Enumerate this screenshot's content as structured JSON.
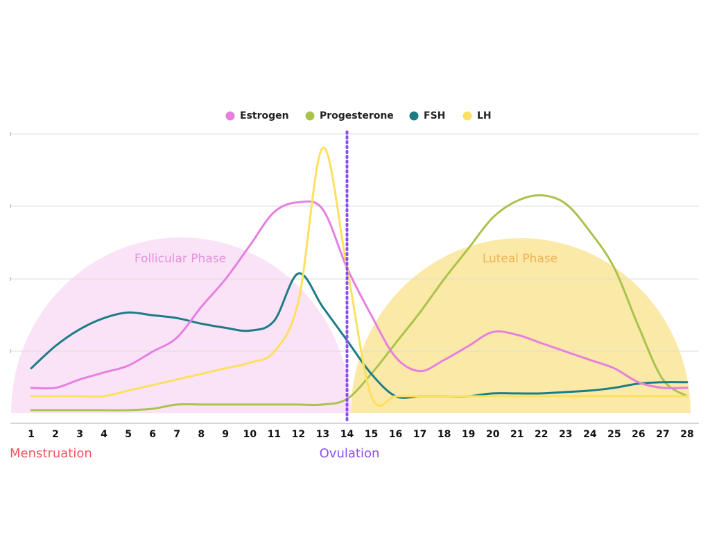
{
  "chart_data": {
    "type": "line",
    "title": "",
    "xlabel": "",
    "ylabel": "",
    "x": [
      1,
      2,
      3,
      4,
      5,
      6,
      7,
      8,
      9,
      10,
      11,
      12,
      13,
      14,
      15,
      16,
      17,
      18,
      19,
      20,
      21,
      22,
      23,
      24,
      25,
      26,
      27,
      28
    ],
    "xlim": [
      1,
      28
    ],
    "ylim": [
      0,
      100
    ],
    "grid": true,
    "legend_position": "top-center",
    "series": [
      {
        "name": "Estrogen",
        "color": "#e580e0",
        "values": [
          9,
          9,
          12,
          14.5,
          17,
          22,
          27,
          38,
          48,
          60,
          72,
          75.5,
          73,
          52,
          35,
          20,
          15,
          19,
          24,
          29,
          28,
          25,
          22,
          19,
          16,
          11,
          9,
          9
        ]
      },
      {
        "name": "Progesterone",
        "color": "#a9c34b",
        "values": [
          1,
          1,
          1,
          1,
          1,
          1.5,
          3,
          3,
          3,
          3,
          3,
          3,
          3,
          5,
          14,
          25,
          36,
          48,
          59,
          70,
          76,
          78,
          75,
          65,
          52,
          31,
          12,
          6
        ]
      },
      {
        "name": "FSH",
        "color": "#1b7c86",
        "values": [
          16,
          24,
          30,
          34,
          36,
          35,
          34,
          32,
          30.5,
          29.5,
          33,
          50,
          38,
          26,
          14,
          6,
          6,
          6,
          6,
          7,
          7,
          7,
          7.5,
          8,
          9,
          10.5,
          11,
          11
        ]
      },
      {
        "name": "LH",
        "color": "#fde05e",
        "values": [
          6,
          6,
          6,
          6,
          8,
          10,
          12,
          14,
          16,
          18,
          22,
          40,
          95,
          52,
          6,
          6,
          6,
          6,
          6,
          6,
          6,
          6,
          6,
          6,
          6,
          6,
          6,
          6
        ]
      }
    ],
    "ovulation_day": 14,
    "annotations": {
      "follicular_phase": "Follicular Phase",
      "luteal_phase": "Luteal Phase",
      "menstruation": "Menstruation",
      "ovulation": "Ovulation"
    },
    "colors": {
      "follicular_fill": "#fae3f7",
      "luteal_fill": "#fbe9a7",
      "follicular_text": "#e293de",
      "luteal_text": "#f1b455",
      "menstruation_text": "#f0565f",
      "ovulation_text": "#8a4ff0",
      "ovulation_line": "#8a4ff0",
      "grid": "#dcdcdc",
      "axis": "#aaaaaa"
    }
  }
}
